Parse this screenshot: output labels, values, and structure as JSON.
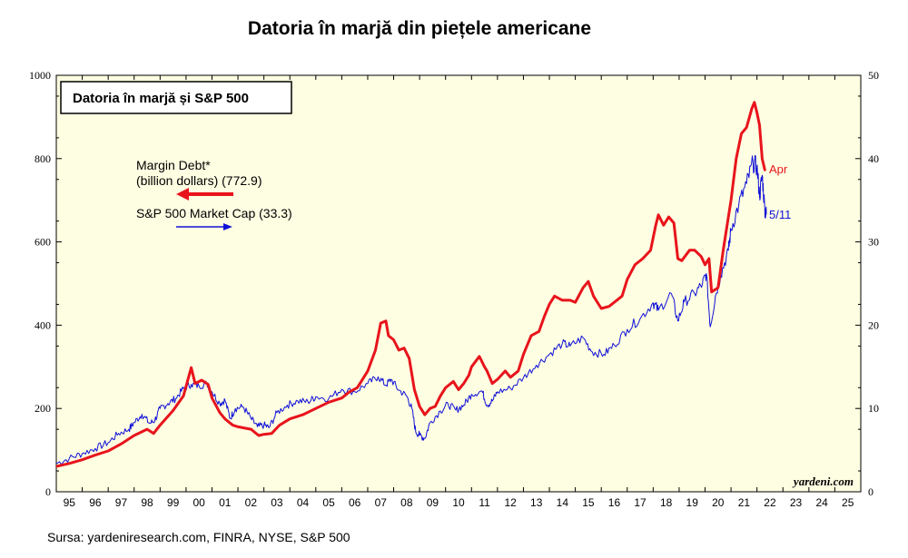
{
  "title": "Datoria în marjă din piețele americane",
  "source": "Sursa: yardeniresearch.com, FINRA, NYSE, S&P 500",
  "chart_data": {
    "type": "line",
    "title": "Datoria în marjă și S&P 500",
    "brand": "yardeni.com",
    "x_ticks": [
      "95",
      "96",
      "97",
      "98",
      "99",
      "00",
      "01",
      "02",
      "03",
      "04",
      "05",
      "06",
      "07",
      "08",
      "09",
      "10",
      "11",
      "12",
      "13",
      "14",
      "15",
      "16",
      "17",
      "18",
      "19",
      "20",
      "21",
      "22",
      "23",
      "24",
      "25"
    ],
    "xlim": [
      1995,
      2026
    ],
    "y_left": {
      "lim": [
        0,
        1000
      ],
      "ticks": [
        0,
        200,
        400,
        600,
        800,
        1000
      ]
    },
    "y_right": {
      "lim": [
        0,
        50
      ],
      "ticks": [
        0,
        10,
        20,
        30,
        40,
        50
      ]
    },
    "grid": false,
    "legend": {
      "margin_line1": "Margin Debt*",
      "margin_line2": "(billion dollars) (772.9)",
      "sp_label": "S&P 500 Market Cap (33.3)"
    },
    "series": [
      {
        "name": "Margin Debt* (billion dollars)",
        "axis": "left",
        "color": "#e8141c",
        "end_label": "Apr",
        "points": [
          [
            1995.0,
            61
          ],
          [
            1995.5,
            68
          ],
          [
            1996.0,
            77
          ],
          [
            1996.5,
            88
          ],
          [
            1997.0,
            98
          ],
          [
            1997.5,
            115
          ],
          [
            1998.0,
            135
          ],
          [
            1998.5,
            150
          ],
          [
            1998.75,
            140
          ],
          [
            1999.0,
            160
          ],
          [
            1999.5,
            195
          ],
          [
            1999.9,
            230
          ],
          [
            2000.2,
            298
          ],
          [
            2000.35,
            260
          ],
          [
            2000.6,
            268
          ],
          [
            2000.85,
            258
          ],
          [
            2001.0,
            225
          ],
          [
            2001.3,
            190
          ],
          [
            2001.5,
            175
          ],
          [
            2001.8,
            160
          ],
          [
            2002.0,
            156
          ],
          [
            2002.5,
            150
          ],
          [
            2002.8,
            135
          ],
          [
            2003.0,
            138
          ],
          [
            2003.3,
            140
          ],
          [
            2003.6,
            160
          ],
          [
            2004.0,
            175
          ],
          [
            2004.5,
            185
          ],
          [
            2005.0,
            200
          ],
          [
            2005.5,
            215
          ],
          [
            2006.0,
            225
          ],
          [
            2006.3,
            240
          ],
          [
            2006.6,
            250
          ],
          [
            2006.8,
            270
          ],
          [
            2007.0,
            290
          ],
          [
            2007.3,
            340
          ],
          [
            2007.5,
            405
          ],
          [
            2007.7,
            410
          ],
          [
            2007.8,
            375
          ],
          [
            2008.0,
            365
          ],
          [
            2008.2,
            340
          ],
          [
            2008.4,
            345
          ],
          [
            2008.6,
            320
          ],
          [
            2008.8,
            245
          ],
          [
            2009.0,
            205
          ],
          [
            2009.2,
            185
          ],
          [
            2009.4,
            200
          ],
          [
            2009.6,
            205
          ],
          [
            2009.8,
            230
          ],
          [
            2010.0,
            250
          ],
          [
            2010.3,
            265
          ],
          [
            2010.5,
            245
          ],
          [
            2010.7,
            260
          ],
          [
            2010.9,
            280
          ],
          [
            2011.0,
            300
          ],
          [
            2011.3,
            325
          ],
          [
            2011.5,
            300
          ],
          [
            2011.6,
            290
          ],
          [
            2011.8,
            260
          ],
          [
            2012.0,
            270
          ],
          [
            2012.3,
            290
          ],
          [
            2012.5,
            275
          ],
          [
            2012.8,
            290
          ],
          [
            2013.0,
            330
          ],
          [
            2013.3,
            375
          ],
          [
            2013.6,
            385
          ],
          [
            2013.8,
            420
          ],
          [
            2014.0,
            450
          ],
          [
            2014.2,
            470
          ],
          [
            2014.5,
            460
          ],
          [
            2014.8,
            460
          ],
          [
            2015.0,
            455
          ],
          [
            2015.3,
            490
          ],
          [
            2015.5,
            505
          ],
          [
            2015.7,
            470
          ],
          [
            2016.0,
            440
          ],
          [
            2016.3,
            445
          ],
          [
            2016.5,
            455
          ],
          [
            2016.8,
            470
          ],
          [
            2017.0,
            510
          ],
          [
            2017.3,
            545
          ],
          [
            2017.6,
            560
          ],
          [
            2017.9,
            580
          ],
          [
            2018.1,
            640
          ],
          [
            2018.2,
            665
          ],
          [
            2018.4,
            640
          ],
          [
            2018.6,
            660
          ],
          [
            2018.8,
            645
          ],
          [
            2018.95,
            560
          ],
          [
            2019.1,
            555
          ],
          [
            2019.4,
            580
          ],
          [
            2019.6,
            580
          ],
          [
            2019.85,
            565
          ],
          [
            2020.0,
            545
          ],
          [
            2020.15,
            560
          ],
          [
            2020.25,
            480
          ],
          [
            2020.5,
            490
          ],
          [
            2020.7,
            580
          ],
          [
            2020.9,
            660
          ],
          [
            2021.0,
            700
          ],
          [
            2021.2,
            800
          ],
          [
            2021.4,
            860
          ],
          [
            2021.6,
            875
          ],
          [
            2021.8,
            920
          ],
          [
            2021.9,
            935
          ],
          [
            2022.0,
            910
          ],
          [
            2022.1,
            880
          ],
          [
            2022.2,
            800
          ],
          [
            2022.3,
            772.9
          ]
        ]
      },
      {
        "name": "S&P 500 Market Cap",
        "axis": "right",
        "color": "#1010d8",
        "end_label": "5/11",
        "points": [
          [
            1995.0,
            3.4
          ],
          [
            1995.5,
            4.0
          ],
          [
            1996.0,
            4.6
          ],
          [
            1996.5,
            5.2
          ],
          [
            1997.0,
            5.9
          ],
          [
            1997.4,
            7.0
          ],
          [
            1997.8,
            7.5
          ],
          [
            1998.0,
            8.3
          ],
          [
            1998.3,
            9.3
          ],
          [
            1998.6,
            8.2
          ],
          [
            1998.8,
            8.6
          ],
          [
            1999.0,
            10.0
          ],
          [
            1999.3,
            10.6
          ],
          [
            1999.6,
            11.2
          ],
          [
            1999.9,
            12.4
          ],
          [
            2000.2,
            12.9
          ],
          [
            2000.5,
            12.7
          ],
          [
            2000.8,
            13.0
          ],
          [
            2001.0,
            12.0
          ],
          [
            2001.3,
            10.6
          ],
          [
            2001.5,
            11.0
          ],
          [
            2001.7,
            8.8
          ],
          [
            2001.9,
            10.0
          ],
          [
            2002.2,
            10.2
          ],
          [
            2002.5,
            8.8
          ],
          [
            2002.75,
            7.8
          ],
          [
            2003.0,
            8.0
          ],
          [
            2003.2,
            7.7
          ],
          [
            2003.5,
            9.5
          ],
          [
            2003.9,
            10.4
          ],
          [
            2004.3,
            10.9
          ],
          [
            2004.7,
            10.8
          ],
          [
            2005.0,
            11.4
          ],
          [
            2005.5,
            11.2
          ],
          [
            2006.0,
            12.3
          ],
          [
            2006.5,
            12.0
          ],
          [
            2007.0,
            13.0
          ],
          [
            2007.4,
            13.8
          ],
          [
            2007.7,
            12.8
          ],
          [
            2007.9,
            13.5
          ],
          [
            2008.2,
            12.2
          ],
          [
            2008.5,
            11.5
          ],
          [
            2008.7,
            10.0
          ],
          [
            2008.85,
            7.2
          ],
          [
            2009.0,
            6.8
          ],
          [
            2009.2,
            6.4
          ],
          [
            2009.4,
            8.3
          ],
          [
            2009.8,
            9.7
          ],
          [
            2010.1,
            10.5
          ],
          [
            2010.4,
            9.8
          ],
          [
            2010.7,
            10.4
          ],
          [
            2011.0,
            11.7
          ],
          [
            2011.4,
            12.1
          ],
          [
            2011.6,
            10.4
          ],
          [
            2011.8,
            10.9
          ],
          [
            2012.0,
            12.0
          ],
          [
            2012.5,
            12.4
          ],
          [
            2013.0,
            13.7
          ],
          [
            2013.5,
            15.2
          ],
          [
            2014.0,
            16.5
          ],
          [
            2014.5,
            17.8
          ],
          [
            2014.8,
            17.5
          ],
          [
            2015.3,
            18.5
          ],
          [
            2015.65,
            16.8
          ],
          [
            2016.1,
            16.5
          ],
          [
            2016.5,
            17.6
          ],
          [
            2017.0,
            19.5
          ],
          [
            2017.5,
            20.8
          ],
          [
            2018.0,
            22.7
          ],
          [
            2018.2,
            21.8
          ],
          [
            2018.7,
            23.8
          ],
          [
            2018.95,
            20.5
          ],
          [
            2019.2,
            22.8
          ],
          [
            2019.6,
            23.8
          ],
          [
            2019.9,
            25.0
          ],
          [
            2020.05,
            26.2
          ],
          [
            2020.2,
            19.8
          ],
          [
            2020.4,
            23.5
          ],
          [
            2020.6,
            26.0
          ],
          [
            2020.9,
            29.0
          ],
          [
            2021.0,
            31.5
          ],
          [
            2021.3,
            34.5
          ],
          [
            2021.6,
            37.0
          ],
          [
            2021.85,
            39.5
          ],
          [
            2022.0,
            39.0
          ],
          [
            2022.1,
            35.5
          ],
          [
            2022.2,
            38.0
          ],
          [
            2022.3,
            34.0
          ],
          [
            2022.36,
            33.3
          ]
        ]
      }
    ]
  }
}
